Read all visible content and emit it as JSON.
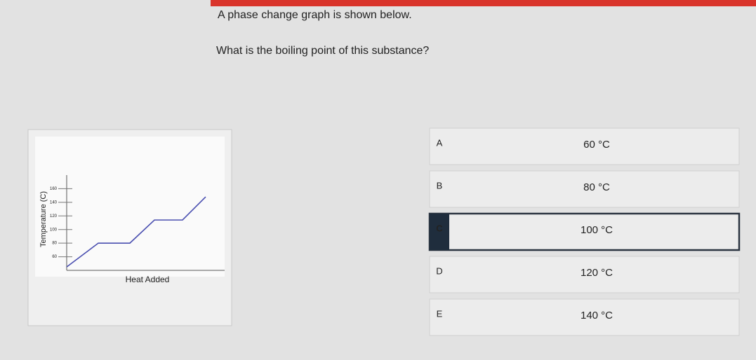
{
  "question": {
    "intro": "A phase change graph is shown below.",
    "prompt": "What is the boiling point of this substance?"
  },
  "graph": {
    "chart_data": {
      "type": "line",
      "y_label": "Temperature (C)",
      "x_label": "Heat Added",
      "x": [
        0,
        45,
        90,
        125,
        165,
        198
      ],
      "xlim": [
        0,
        225
      ],
      "series": [
        {
          "color": "#4a4fb0",
          "values": [
            45,
            80,
            80,
            114,
            114,
            148
          ]
        }
      ],
      "ylim": [
        40,
        180
      ],
      "yticks": [
        60,
        80,
        100,
        120,
        140,
        160
      ]
    }
  },
  "options": [
    {
      "letter": "A",
      "text": "60 °C"
    },
    {
      "letter": "B",
      "text": "80 °C"
    },
    {
      "letter": "C",
      "text": "100 °C"
    },
    {
      "letter": "D",
      "text": "120 °C"
    },
    {
      "letter": "E",
      "text": "140 °C"
    }
  ],
  "selected": 2
}
